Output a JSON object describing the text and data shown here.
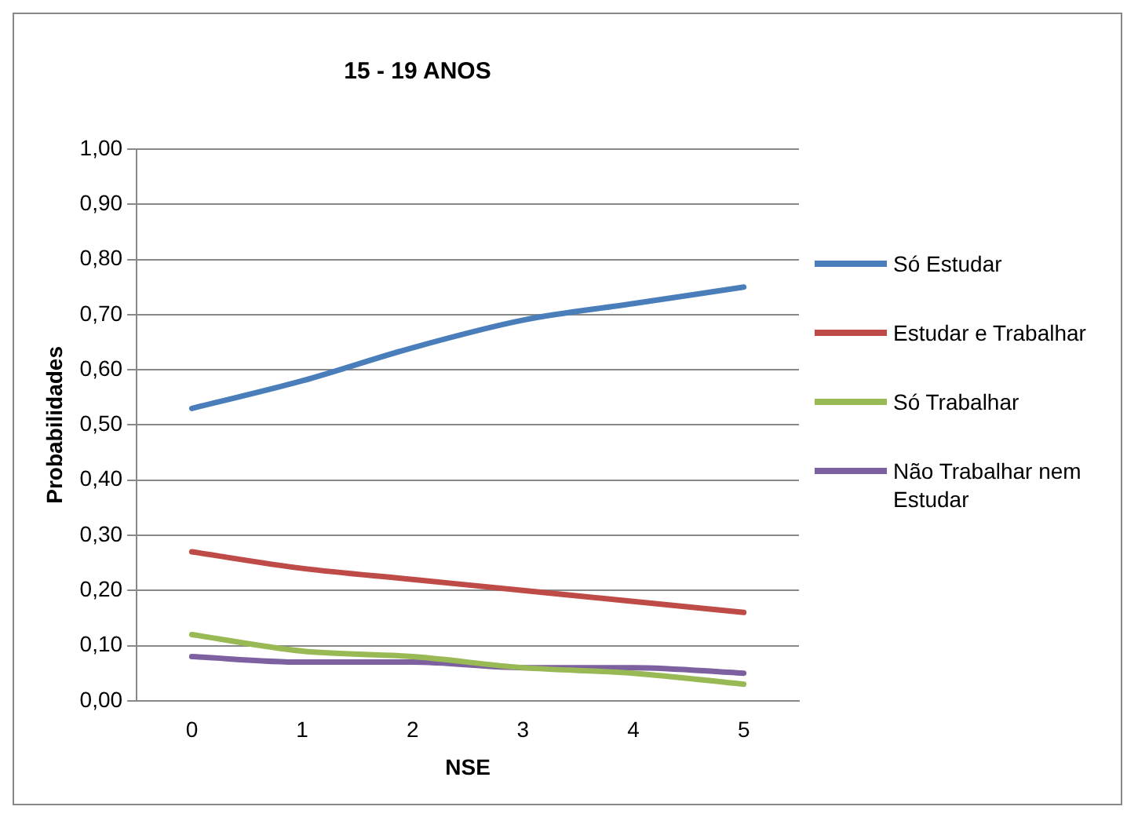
{
  "chart_data": {
    "type": "line",
    "title": "15 - 19 ANOS",
    "xlabel": "NSE",
    "ylabel": "Probabilidades",
    "categories": [
      "0",
      "1",
      "2",
      "3",
      "4",
      "5"
    ],
    "series": [
      {
        "name": "Só Estudar",
        "color": "#4a7ebb",
        "values": [
          0.53,
          0.58,
          0.64,
          0.69,
          0.72,
          0.75
        ]
      },
      {
        "name": "Estudar e Trabalhar",
        "color": "#be4b48",
        "values": [
          0.27,
          0.24,
          0.22,
          0.2,
          0.18,
          0.16
        ]
      },
      {
        "name": "Só Trabalhar",
        "color": "#98b954",
        "values": [
          0.12,
          0.09,
          0.08,
          0.06,
          0.05,
          0.03
        ]
      },
      {
        "name": "Não Trabalhar nem Estudar",
        "color": "#7d60a0",
        "values": [
          0.08,
          0.07,
          0.07,
          0.06,
          0.06,
          0.05
        ]
      }
    ],
    "ylim": [
      0,
      1
    ],
    "yticks": [
      {
        "value": 0,
        "label": "0,00"
      },
      {
        "value": 0.1,
        "label": "0,10"
      },
      {
        "value": 0.2,
        "label": "0,20"
      },
      {
        "value": 0.3,
        "label": "0,30"
      },
      {
        "value": 0.4,
        "label": "0,40"
      },
      {
        "value": 0.5,
        "label": "0,50"
      },
      {
        "value": 0.6,
        "label": "0,60"
      },
      {
        "value": 0.7,
        "label": "0,70"
      },
      {
        "value": 0.8,
        "label": "0,80"
      },
      {
        "value": 0.9,
        "label": "0,90"
      },
      {
        "value": 1,
        "label": "1,00"
      }
    ],
    "grid": "y",
    "legend": "right",
    "marker": "none",
    "line_style": "solid"
  }
}
